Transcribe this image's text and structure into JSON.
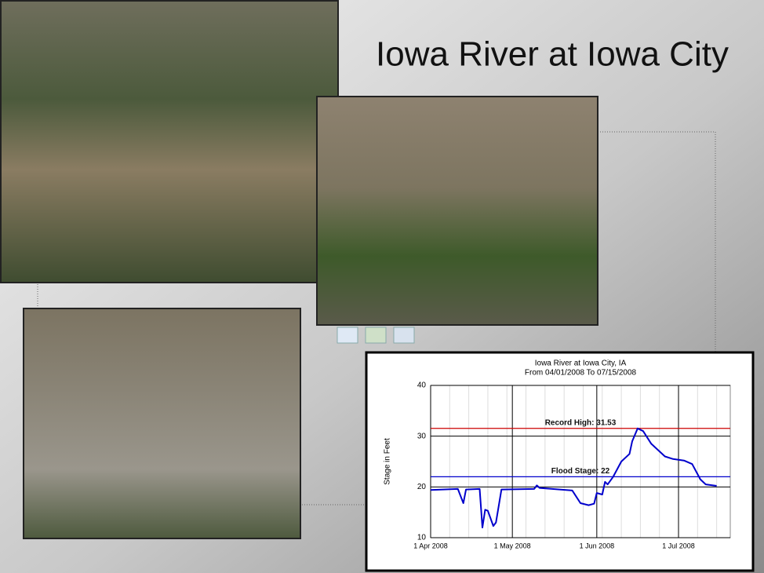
{
  "title": "Iowa River at Iowa City",
  "chart_data": {
    "type": "line",
    "title": "Iowa River at Iowa City, IA",
    "subtitle": "From 04/01/2008 To 07/15/2008",
    "y_label": "Stage in Feet",
    "x": [
      "2008-04-01",
      "2008-04-11",
      "2008-04-13",
      "2008-04-14",
      "2008-04-19",
      "2008-04-20",
      "2008-04-21",
      "2008-04-22",
      "2008-04-24",
      "2008-04-25",
      "2008-04-27",
      "2008-05-09",
      "2008-05-10",
      "2008-05-11",
      "2008-05-23",
      "2008-05-26",
      "2008-05-29",
      "2008-05-31",
      "2008-06-01",
      "2008-06-03",
      "2008-06-04",
      "2008-06-05",
      "2008-06-07",
      "2008-06-10",
      "2008-06-13",
      "2008-06-14",
      "2008-06-16",
      "2008-06-18",
      "2008-06-21",
      "2008-06-26",
      "2008-06-29",
      "2008-07-03",
      "2008-07-06",
      "2008-07-09",
      "2008-07-11",
      "2008-07-15"
    ],
    "series": [
      {
        "name": "Stage",
        "color": "#0000cc",
        "values": [
          19.4,
          19.6,
          16.8,
          19.5,
          19.6,
          12,
          15.5,
          15.3,
          12.3,
          13,
          19.5,
          19.6,
          20.3,
          19.8,
          19.3,
          16.8,
          16.4,
          16.7,
          18.8,
          18.5,
          21,
          20.5,
          22,
          25,
          26.5,
          29,
          31.53,
          31,
          28.5,
          26,
          25.5,
          25.2,
          24.5,
          21.5,
          20.5,
          20.2
        ]
      }
    ],
    "xlim": [
      "2008-04-01",
      "2008-07-20"
    ],
    "xticks": [
      {
        "value": "2008-04-01",
        "label": "1 Apr 2008"
      },
      {
        "value": "2008-05-01",
        "label": "1 May 2008"
      },
      {
        "value": "2008-06-01",
        "label": "1 Jun 2008"
      },
      {
        "value": "2008-07-01",
        "label": "1 Jul 2008"
      }
    ],
    "ylim": [
      10,
      40
    ],
    "yticks": [
      10,
      20,
      30,
      40
    ],
    "grid": true,
    "annotations": [
      {
        "label": "Record High: 31.53",
        "value": 31.53,
        "color": "#cc0000"
      },
      {
        "label": "Flood Stage: 22",
        "value": 22,
        "color": "#0000cc"
      }
    ]
  }
}
